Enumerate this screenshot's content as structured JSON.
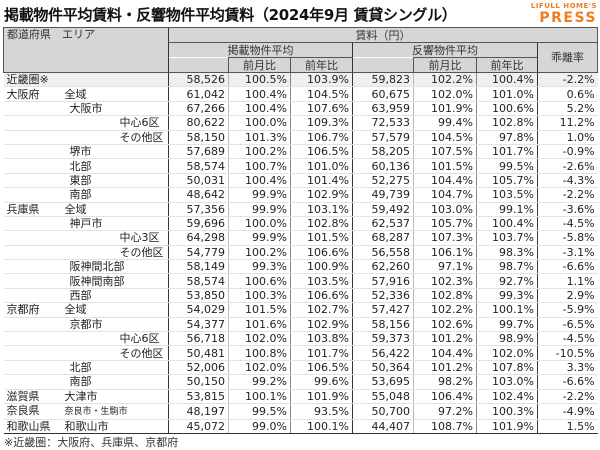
{
  "title": "掲載物件平均賃料・反響物件平均賃料（2024年9月 賃貸シングル）",
  "logo": {
    "line1": "LIFULL HOME'S",
    "line2": "PRESS",
    "color": "#f07c1e"
  },
  "table": {
    "headers": {
      "area": "都道府県　エリア",
      "rent": "賃料（円）",
      "listed_avg": "掲載物件平均",
      "inquiry_avg": "反響物件平均",
      "mom": "前月比",
      "yoy": "前年比",
      "divergence": "乖離率"
    },
    "rows": [
      {
        "pref": "近畿圏※",
        "area": "",
        "level": 0,
        "listed": "58,526",
        "listed_mom": "100.5%",
        "listed_yoy": "103.9%",
        "inquiry": "59,823",
        "inquiry_mom": "102.2%",
        "inquiry_yoy": "100.4%",
        "divergence": "-2.2%"
      },
      {
        "pref": "大阪府",
        "area": "全域",
        "level": 1,
        "listed": "61,042",
        "listed_mom": "100.4%",
        "listed_yoy": "104.5%",
        "inquiry": "60,675",
        "inquiry_mom": "102.0%",
        "inquiry_yoy": "101.0%",
        "divergence": "0.6%"
      },
      {
        "pref": "",
        "area": "大阪市",
        "level": 2,
        "listed": "67,266",
        "listed_mom": "100.4%",
        "listed_yoy": "107.6%",
        "inquiry": "63,959",
        "inquiry_mom": "101.9%",
        "inquiry_yoy": "100.6%",
        "divergence": "5.2%"
      },
      {
        "pref": "",
        "area": "中心6区",
        "level": 3,
        "listed": "80,622",
        "listed_mom": "100.0%",
        "listed_yoy": "109.3%",
        "inquiry": "72,533",
        "inquiry_mom": "99.4%",
        "inquiry_yoy": "102.8%",
        "divergence": "11.2%"
      },
      {
        "pref": "",
        "area": "その他区",
        "level": 3,
        "listed": "58,150",
        "listed_mom": "101.3%",
        "listed_yoy": "106.7%",
        "inquiry": "57,579",
        "inquiry_mom": "104.5%",
        "inquiry_yoy": "97.8%",
        "divergence": "1.0%"
      },
      {
        "pref": "",
        "area": "堺市",
        "level": 2,
        "listed": "57,689",
        "listed_mom": "100.2%",
        "listed_yoy": "106.5%",
        "inquiry": "58,205",
        "inquiry_mom": "107.5%",
        "inquiry_yoy": "101.7%",
        "divergence": "-0.9%"
      },
      {
        "pref": "",
        "area": "北部",
        "level": 2,
        "listed": "58,574",
        "listed_mom": "100.7%",
        "listed_yoy": "101.0%",
        "inquiry": "60,136",
        "inquiry_mom": "101.5%",
        "inquiry_yoy": "99.5%",
        "divergence": "-2.6%"
      },
      {
        "pref": "",
        "area": "東部",
        "level": 2,
        "listed": "50,031",
        "listed_mom": "100.4%",
        "listed_yoy": "101.4%",
        "inquiry": "52,275",
        "inquiry_mom": "104.4%",
        "inquiry_yoy": "105.7%",
        "divergence": "-4.3%"
      },
      {
        "pref": "",
        "area": "南部",
        "level": 2,
        "listed": "48,642",
        "listed_mom": "99.9%",
        "listed_yoy": "102.9%",
        "inquiry": "49,739",
        "inquiry_mom": "104.7%",
        "inquiry_yoy": "103.5%",
        "divergence": "-2.2%"
      },
      {
        "pref": "兵庫県",
        "area": "全域",
        "level": 1,
        "listed": "57,356",
        "listed_mom": "99.9%",
        "listed_yoy": "103.1%",
        "inquiry": "59,492",
        "inquiry_mom": "103.0%",
        "inquiry_yoy": "99.1%",
        "divergence": "-3.6%"
      },
      {
        "pref": "",
        "area": "神戸市",
        "level": 2,
        "listed": "59,696",
        "listed_mom": "100.0%",
        "listed_yoy": "102.8%",
        "inquiry": "62,537",
        "inquiry_mom": "105.7%",
        "inquiry_yoy": "100.4%",
        "divergence": "-4.5%"
      },
      {
        "pref": "",
        "area": "中心3区",
        "level": 3,
        "listed": "64,298",
        "listed_mom": "99.9%",
        "listed_yoy": "101.5%",
        "inquiry": "68,287",
        "inquiry_mom": "107.3%",
        "inquiry_yoy": "103.7%",
        "divergence": "-5.8%"
      },
      {
        "pref": "",
        "area": "その他区",
        "level": 3,
        "listed": "54,779",
        "listed_mom": "100.2%",
        "listed_yoy": "106.6%",
        "inquiry": "56,558",
        "inquiry_mom": "106.1%",
        "inquiry_yoy": "98.3%",
        "divergence": "-3.1%"
      },
      {
        "pref": "",
        "area": "阪神間北部",
        "level": 2,
        "listed": "58,149",
        "listed_mom": "99.3%",
        "listed_yoy": "100.9%",
        "inquiry": "62,260",
        "inquiry_mom": "97.1%",
        "inquiry_yoy": "98.7%",
        "divergence": "-6.6%"
      },
      {
        "pref": "",
        "area": "阪神間南部",
        "level": 2,
        "listed": "58,574",
        "listed_mom": "100.6%",
        "listed_yoy": "103.5%",
        "inquiry": "57,916",
        "inquiry_mom": "102.3%",
        "inquiry_yoy": "92.7%",
        "divergence": "1.1%"
      },
      {
        "pref": "",
        "area": "西部",
        "level": 2,
        "listed": "53,850",
        "listed_mom": "100.3%",
        "listed_yoy": "106.6%",
        "inquiry": "52,336",
        "inquiry_mom": "102.8%",
        "inquiry_yoy": "99.3%",
        "divergence": "2.9%"
      },
      {
        "pref": "京都府",
        "area": "全域",
        "level": 1,
        "listed": "54,029",
        "listed_mom": "101.5%",
        "listed_yoy": "102.7%",
        "inquiry": "57,427",
        "inquiry_mom": "102.2%",
        "inquiry_yoy": "100.1%",
        "divergence": "-5.9%"
      },
      {
        "pref": "",
        "area": "京都市",
        "level": 2,
        "listed": "54,377",
        "listed_mom": "101.6%",
        "listed_yoy": "102.9%",
        "inquiry": "58,156",
        "inquiry_mom": "102.6%",
        "inquiry_yoy": "99.7%",
        "divergence": "-6.5%"
      },
      {
        "pref": "",
        "area": "中心6区",
        "level": 3,
        "listed": "56,718",
        "listed_mom": "102.0%",
        "listed_yoy": "103.8%",
        "inquiry": "59,373",
        "inquiry_mom": "101.2%",
        "inquiry_yoy": "98.9%",
        "divergence": "-4.5%"
      },
      {
        "pref": "",
        "area": "その他区",
        "level": 3,
        "listed": "50,481",
        "listed_mom": "100.8%",
        "listed_yoy": "101.7%",
        "inquiry": "56,422",
        "inquiry_mom": "104.4%",
        "inquiry_yoy": "102.0%",
        "divergence": "-10.5%"
      },
      {
        "pref": "",
        "area": "北部",
        "level": 2,
        "listed": "52,006",
        "listed_mom": "102.0%",
        "listed_yoy": "106.5%",
        "inquiry": "50,364",
        "inquiry_mom": "101.2%",
        "inquiry_yoy": "107.8%",
        "divergence": "3.3%"
      },
      {
        "pref": "",
        "area": "南部",
        "level": 2,
        "listed": "50,150",
        "listed_mom": "99.2%",
        "listed_yoy": "99.6%",
        "inquiry": "53,695",
        "inquiry_mom": "98.2%",
        "inquiry_yoy": "103.0%",
        "divergence": "-6.6%"
      },
      {
        "pref": "滋賀県",
        "area": "大津市",
        "level": 1,
        "listed": "53,815",
        "listed_mom": "100.1%",
        "listed_yoy": "101.9%",
        "inquiry": "55,048",
        "inquiry_mom": "106.4%",
        "inquiry_yoy": "102.4%",
        "divergence": "-2.2%"
      },
      {
        "pref": "奈良県",
        "area": "奈良市・生駒市",
        "level": 1,
        "listed": "48,197",
        "listed_mom": "99.5%",
        "listed_yoy": "93.5%",
        "inquiry": "50,700",
        "inquiry_mom": "97.2%",
        "inquiry_yoy": "100.3%",
        "divergence": "-4.9%"
      },
      {
        "pref": "和歌山県",
        "area": "和歌山市",
        "level": 1,
        "listed": "45,072",
        "listed_mom": "99.0%",
        "listed_yoy": "100.1%",
        "inquiry": "44,407",
        "inquiry_mom": "108.7%",
        "inquiry_yoy": "101.9%",
        "divergence": "1.5%"
      }
    ]
  },
  "footnote": "※近畿圏：大阪府、兵庫県、京都府"
}
